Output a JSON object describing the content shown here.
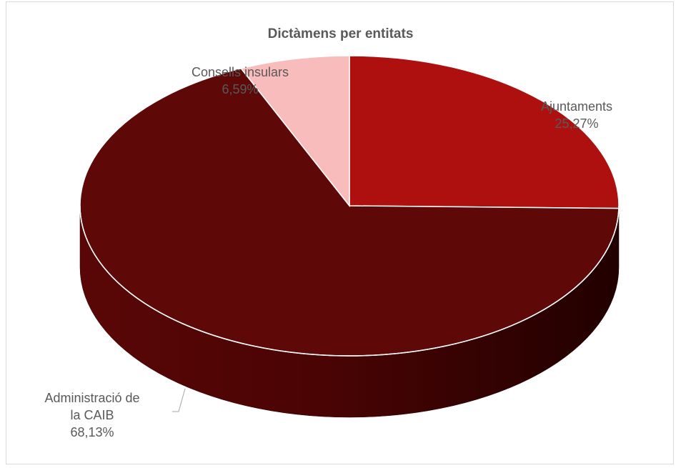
{
  "chart_data": {
    "type": "pie",
    "style": "3d",
    "title": "Dictàmens per entitats",
    "slices": [
      {
        "label": "Ajuntaments",
        "value": 25.27,
        "value_label": "25,27%",
        "color": "#ae1010"
      },
      {
        "label": "Administració de la CAIB",
        "label_lines": [
          "Administració de",
          "la CAIB"
        ],
        "value": 68.13,
        "value_label": "68,13%",
        "color": "#5e0808"
      },
      {
        "label": "Consells insulars",
        "value": 6.59,
        "value_label": "6,59%",
        "color": "#f9bcbc"
      }
    ],
    "legend": "none"
  }
}
